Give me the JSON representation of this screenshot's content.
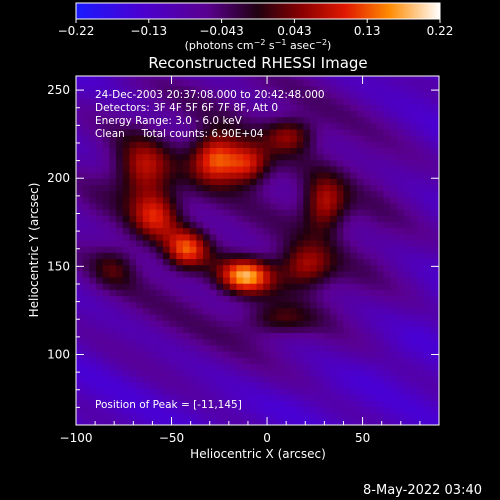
{
  "page": {
    "date_stamp": "8-May-2022 03:40"
  },
  "colorbar": {
    "ticks": [
      "−0.22",
      "−0.13",
      "−0.043",
      "0.043",
      "0.13",
      "0.22"
    ],
    "unit_label_parts": [
      "(photons cm",
      "−2",
      " s",
      "−1",
      " asec",
      "−2",
      ")"
    ],
    "range": [
      -0.22,
      0.22
    ]
  },
  "info": {
    "lines": [
      "24-Dec-2003 20:37:08.000 to 20:42:48.000",
      "Detectors: 3F 4F 5F 6F 7F 8F, Att 0",
      "Energy Range: 3.0 - 6.0 keV",
      "Clean     Total counts: 6.90E+04"
    ],
    "peak": "Position of Peak = [-11,145]"
  },
  "chart_data": {
    "type": "heatmap",
    "title": "Reconstructed RHESSI Image",
    "xlabel": "Heliocentric X (arcsec)",
    "ylabel": "Heliocentric Y (arcsec)",
    "xlim": [
      -100,
      90
    ],
    "ylim": [
      60,
      258
    ],
    "xticks": [
      -100,
      -50,
      0,
      50
    ],
    "yticks": [
      100,
      150,
      200,
      250
    ],
    "xtick_labels": [
      "−100",
      "−50",
      "0",
      "50"
    ],
    "ytick_labels": [
      "100",
      "150",
      "200",
      "250"
    ],
    "peak": [
      -11,
      145
    ],
    "sources": [
      {
        "x": -27,
        "y": 212,
        "amp": 0.2,
        "sx": 9,
        "sy": 10
      },
      {
        "x": -10,
        "y": 208,
        "amp": 0.16,
        "sx": 8,
        "sy": 8
      },
      {
        "x": -65,
        "y": 205,
        "amp": 0.14,
        "sx": 10,
        "sy": 12
      },
      {
        "x": -58,
        "y": 180,
        "amp": 0.15,
        "sx": 9,
        "sy": 10
      },
      {
        "x": -42,
        "y": 160,
        "amp": 0.17,
        "sx": 8,
        "sy": 8
      },
      {
        "x": -11,
        "y": 145,
        "amp": 0.22,
        "sx": 10,
        "sy": 7
      },
      {
        "x": 20,
        "y": 150,
        "amp": 0.14,
        "sx": 10,
        "sy": 9
      },
      {
        "x": 30,
        "y": 185,
        "amp": 0.15,
        "sx": 8,
        "sy": 11
      },
      {
        "x": 12,
        "y": 225,
        "amp": 0.12,
        "sx": 9,
        "sy": 7
      },
      {
        "x": -80,
        "y": 150,
        "amp": 0.07,
        "sx": 8,
        "sy": 8
      },
      {
        "x": 5,
        "y": 120,
        "amp": 0.08,
        "sx": 12,
        "sy": 6
      }
    ]
  }
}
